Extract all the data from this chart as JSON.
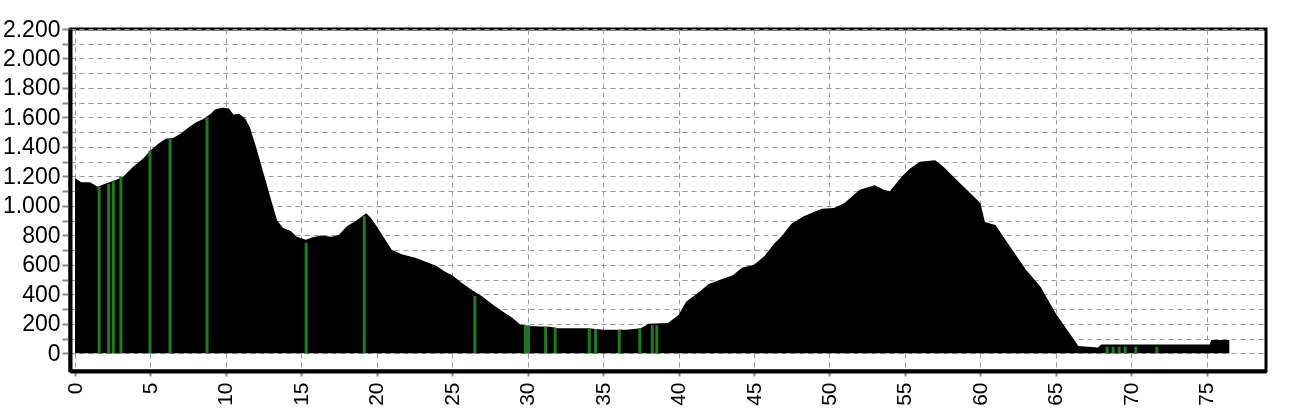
{
  "chart_data": {
    "type": "area",
    "xlim": [
      0,
      78.6
    ],
    "ylim": [
      -120,
      2200
    ],
    "xticks": [
      0,
      5,
      10,
      15,
      20,
      25,
      30,
      35,
      40,
      45,
      50,
      55,
      60,
      65,
      70,
      75
    ],
    "yticks": [
      0,
      {
        "value": 100,
        "label": null
      },
      200,
      {
        "value": 300,
        "label": null
      },
      400,
      {
        "value": 500,
        "label": null
      },
      600,
      {
        "value": 700,
        "label": null
      },
      800,
      {
        "value": 900,
        "label": null
      },
      {
        "value": 1000,
        "label": "1.000"
      },
      {
        "value": 1100,
        "label": null
      },
      {
        "value": 1200,
        "label": "1.200"
      },
      {
        "value": 1300,
        "label": null
      },
      {
        "value": 1400,
        "label": "1.400"
      },
      {
        "value": 1500,
        "label": null
      },
      {
        "value": 1600,
        "label": "1.600"
      },
      {
        "value": 1700,
        "label": null
      },
      {
        "value": 1800,
        "label": "1.800"
      },
      {
        "value": 1900,
        "label": null
      },
      {
        "value": 2000,
        "label": "2.000"
      },
      {
        "value": 2100,
        "label": null
      },
      {
        "value": 2200,
        "label": "2.200"
      }
    ],
    "grid": true,
    "line_style": "dashed",
    "series": [
      {
        "color": "#000000",
        "x": [
          0,
          0.4,
          1.0,
          1.5,
          2.0,
          2.7,
          3.2,
          3.8,
          4.5,
          5.0,
          5.5,
          6.0,
          6.5,
          7.0,
          7.5,
          8.0,
          8.5,
          9.0,
          9.3,
          9.8,
          10.2,
          10.5,
          10.9,
          11.3,
          11.6,
          12.0,
          12.5,
          13.0,
          13.4,
          13.8,
          14.3,
          14.7,
          15.3,
          15.7,
          16.3,
          17.0,
          17.5,
          18.0,
          18.7,
          19.3,
          19.6,
          20.0,
          20.5,
          21.0,
          21.7,
          22.5,
          23.3,
          24.0,
          24.5,
          25.0,
          25.6,
          26.3,
          27.0,
          27.7,
          28.4,
          29.0,
          29.5,
          30.0,
          31.5,
          32.0,
          34.0,
          35.0,
          36.5,
          37.5,
          38.0,
          39.3,
          40.0,
          40.5,
          41.3,
          42.0,
          42.8,
          43.6,
          44.2,
          45.0,
          45.7,
          46.3,
          46.8,
          47.5,
          48.3,
          49.0,
          49.5,
          50.3,
          51.0,
          52.0,
          53.0,
          53.6,
          54.0,
          54.8,
          55.3,
          56.0,
          57.0,
          57.5,
          58.0,
          59.0,
          60.0,
          60.3,
          61.0,
          62.0,
          63.0,
          64.0,
          65.0,
          65.9,
          66.5,
          67.8,
          68.0,
          75.2,
          75.3,
          76.5
        ],
        "values": [
          1190,
          1160,
          1160,
          1130,
          1150,
          1175,
          1200,
          1260,
          1320,
          1375,
          1420,
          1455,
          1460,
          1490,
          1530,
          1565,
          1590,
          1625,
          1655,
          1665,
          1660,
          1620,
          1625,
          1590,
          1530,
          1400,
          1220,
          1040,
          900,
          850,
          830,
          790,
          770,
          785,
          800,
          790,
          805,
          860,
          905,
          950,
          920,
          860,
          780,
          700,
          670,
          650,
          620,
          590,
          555,
          530,
          480,
          430,
          385,
          330,
          280,
          240,
          195,
          185,
          180,
          170,
          170,
          160,
          160,
          170,
          200,
          205,
          260,
          350,
          410,
          470,
          500,
          530,
          580,
          600,
          660,
          740,
          790,
          880,
          930,
          960,
          980,
          985,
          1020,
          1110,
          1140,
          1110,
          1100,
          1200,
          1250,
          1300,
          1310,
          1270,
          1220,
          1120,
          1020,
          890,
          870,
          720,
          570,
          450,
          270,
          137,
          50,
          40,
          60,
          60,
          90,
          90
        ]
      },
      {
        "type": "bar",
        "color": "#1e7b1e",
        "x": [
          1.6,
          2.23,
          2.54,
          3.04,
          4.97,
          6.3,
          8.75,
          15.32,
          19.17,
          26.5,
          29.85,
          30.05,
          31.19,
          31.82,
          34.08,
          34.5,
          36.07,
          37.43,
          38.26,
          38.56,
          68.4,
          68.8,
          69.2,
          69.6,
          70.3,
          71.7
        ],
        "values": [
          1130,
          1150,
          1165,
          1200,
          1375,
          1455,
          1600,
          750,
          930,
          390,
          190,
          190,
          180,
          175,
          170,
          165,
          160,
          170,
          190,
          190,
          45,
          45,
          45,
          45,
          45,
          45
        ]
      }
    ]
  }
}
